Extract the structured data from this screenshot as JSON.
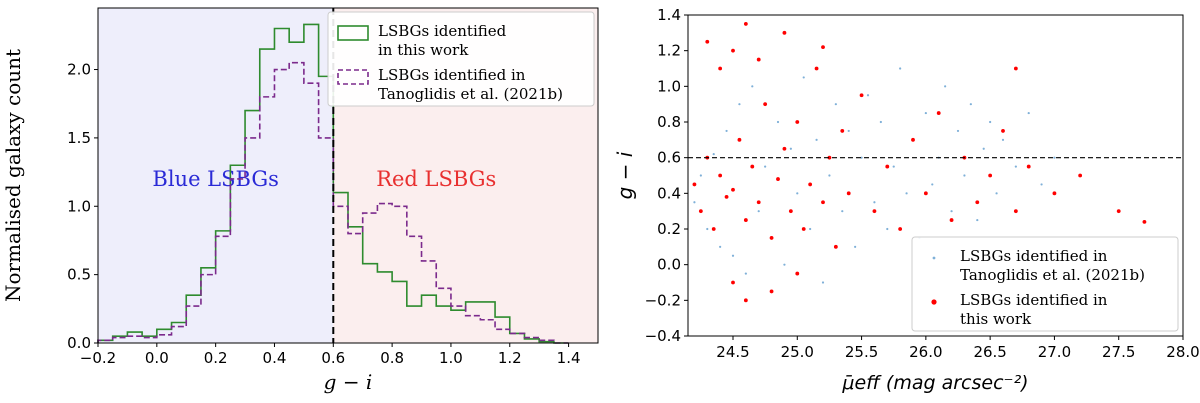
{
  "chart_data": [
    {
      "type": "histogram-step",
      "xlabel": "g − i",
      "ylabel": "Normalised galaxy count",
      "xlim": [
        -0.2,
        1.5
      ],
      "ylim": [
        0,
        2.45
      ],
      "xticks": [
        "−0.2",
        "0.0",
        "0.2",
        "0.4",
        "0.6",
        "0.8",
        "1.0",
        "1.2",
        "1.4"
      ],
      "xtick_values": [
        -0.2,
        0.0,
        0.2,
        0.4,
        0.6,
        0.8,
        1.0,
        1.2,
        1.4
      ],
      "yticks": [
        "0.0",
        "0.5",
        "1.0",
        "1.5",
        "2.0"
      ],
      "ytick_values": [
        0.0,
        0.5,
        1.0,
        1.5,
        2.0
      ],
      "divider_x": 0.6,
      "regions": [
        {
          "label": "Blue LSBGs",
          "from": -0.2,
          "to": 0.6,
          "fill": "#eeeefb",
          "text_color": "#2a2ad6"
        },
        {
          "label": "Red LSBGs",
          "from": 0.6,
          "to": 1.5,
          "fill": "#fbeeee",
          "text_color": "#e83030"
        }
      ],
      "legend_position": "top-right",
      "series": [
        {
          "name": "LSBGs identified\nin this work",
          "color": "#2e8b2e",
          "style": "solid",
          "edges": [
            -0.2,
            -0.15,
            -0.1,
            -0.05,
            0.0,
            0.05,
            0.1,
            0.15,
            0.2,
            0.25,
            0.3,
            0.35,
            0.4,
            0.45,
            0.5,
            0.55,
            0.6,
            0.65,
            0.7,
            0.75,
            0.8,
            0.85,
            0.9,
            0.95,
            1.0,
            1.05,
            1.1,
            1.15,
            1.2,
            1.25,
            1.3,
            1.35,
            1.4
          ],
          "values": [
            0.02,
            0.05,
            0.08,
            0.05,
            0.1,
            0.15,
            0.35,
            0.55,
            0.82,
            1.3,
            1.7,
            2.15,
            2.3,
            2.2,
            2.33,
            1.95,
            1.1,
            0.85,
            0.58,
            0.52,
            0.45,
            0.27,
            0.35,
            0.27,
            0.24,
            0.3,
            0.3,
            0.19,
            0.07,
            0.03,
            0.01,
            0.0
          ]
        },
        {
          "name": "LSBGs identified in\nTanoglidis et al. (2021b)",
          "color": "#7b2a8c",
          "style": "dashed",
          "edges": [
            -0.2,
            -0.15,
            -0.1,
            -0.05,
            0.0,
            0.05,
            0.1,
            0.15,
            0.2,
            0.25,
            0.3,
            0.35,
            0.4,
            0.45,
            0.5,
            0.55,
            0.6,
            0.65,
            0.7,
            0.75,
            0.8,
            0.85,
            0.9,
            0.95,
            1.0,
            1.05,
            1.1,
            1.15,
            1.2,
            1.25,
            1.3,
            1.35,
            1.4
          ],
          "values": [
            0.02,
            0.04,
            0.05,
            0.04,
            0.06,
            0.12,
            0.27,
            0.5,
            0.78,
            1.2,
            1.5,
            1.8,
            2.0,
            2.05,
            1.9,
            1.5,
            1.0,
            0.8,
            0.95,
            1.02,
            1.0,
            0.78,
            0.6,
            0.4,
            0.27,
            0.2,
            0.17,
            0.1,
            0.07,
            0.04,
            0.02,
            0.0
          ]
        }
      ]
    },
    {
      "type": "scatter",
      "xlabel": "μ̄eff (mag arcsec⁻²)",
      "ylabel": "g − i",
      "xlim": [
        24.15,
        28.0
      ],
      "ylim": [
        -0.4,
        1.4
      ],
      "xticks": [
        "24.5",
        "25.0",
        "25.5",
        "26.0",
        "26.5",
        "27.0",
        "27.5",
        "28.0"
      ],
      "xtick_values": [
        24.5,
        25.0,
        25.5,
        26.0,
        26.5,
        27.0,
        27.5,
        28.0
      ],
      "yticks": [
        "−0.4",
        "−0.2",
        "0.0",
        "0.2",
        "0.4",
        "0.6",
        "0.8",
        "1.0",
        "1.2",
        "1.4"
      ],
      "ytick_values": [
        -0.4,
        -0.2,
        0.0,
        0.2,
        0.4,
        0.6,
        0.8,
        1.0,
        1.2,
        1.4
      ],
      "reference_line_y": 0.6,
      "legend_position": "bottom-right",
      "series": [
        {
          "name": "LSBGs identified in\nTanoglidis et al. (2021b)",
          "color": "#7fb0d8",
          "marker": "small-dot",
          "points": [
            [
              24.2,
              0.35
            ],
            [
              24.25,
              0.5
            ],
            [
              24.3,
              0.2
            ],
            [
              24.35,
              0.62
            ],
            [
              24.4,
              0.1
            ],
            [
              24.45,
              0.75
            ],
            [
              24.5,
              0.05
            ],
            [
              24.55,
              0.9
            ],
            [
              24.6,
              -0.05
            ],
            [
              24.65,
              1.0
            ],
            [
              24.7,
              0.3
            ],
            [
              24.75,
              0.55
            ],
            [
              24.8,
              0.15
            ],
            [
              24.85,
              0.8
            ],
            [
              24.9,
              0.0
            ],
            [
              24.95,
              0.65
            ],
            [
              25.0,
              0.4
            ],
            [
              25.05,
              1.05
            ],
            [
              25.1,
              0.2
            ],
            [
              25.15,
              0.7
            ],
            [
              25.2,
              -0.1
            ],
            [
              25.25,
              0.5
            ],
            [
              25.3,
              0.9
            ],
            [
              25.35,
              0.3
            ],
            [
              25.4,
              0.75
            ],
            [
              25.45,
              0.1
            ],
            [
              25.5,
              0.6
            ],
            [
              25.55,
              0.95
            ],
            [
              25.6,
              0.35
            ],
            [
              25.65,
              0.8
            ],
            [
              25.7,
              0.2
            ],
            [
              25.75,
              0.55
            ],
            [
              25.8,
              1.1
            ],
            [
              25.85,
              0.4
            ],
            [
              25.9,
              0.7
            ],
            [
              25.95,
              0.15
            ],
            [
              26.0,
              0.85
            ],
            [
              26.05,
              0.45
            ],
            [
              26.1,
              0.6
            ],
            [
              26.15,
              1.0
            ],
            [
              26.2,
              0.3
            ],
            [
              26.25,
              0.75
            ],
            [
              26.3,
              0.5
            ],
            [
              26.35,
              0.9
            ],
            [
              26.4,
              0.25
            ],
            [
              26.45,
              0.65
            ],
            [
              26.5,
              0.8
            ],
            [
              26.55,
              0.4
            ],
            [
              26.6,
              0.7
            ],
            [
              26.7,
              0.55
            ],
            [
              26.8,
              0.85
            ],
            [
              26.9,
              0.45
            ],
            [
              27.0,
              0.6
            ]
          ]
        },
        {
          "name": "LSBGs identified in\nthis work",
          "color": "#ff0000",
          "marker": "dot",
          "points": [
            [
              24.2,
              0.45
            ],
            [
              24.25,
              0.3
            ],
            [
              24.3,
              0.6
            ],
            [
              24.35,
              0.2
            ],
            [
              24.4,
              0.5
            ],
            [
              24.45,
              0.38
            ],
            [
              24.5,
              0.42
            ],
            [
              24.55,
              0.7
            ],
            [
              24.6,
              0.25
            ],
            [
              24.65,
              0.55
            ],
            [
              24.7,
              0.35
            ],
            [
              24.75,
              0.9
            ],
            [
              24.8,
              0.15
            ],
            [
              24.85,
              0.48
            ],
            [
              24.9,
              0.65
            ],
            [
              24.95,
              0.3
            ],
            [
              25.0,
              0.8
            ],
            [
              25.05,
              0.2
            ],
            [
              25.1,
              0.45
            ],
            [
              25.15,
              1.1
            ],
            [
              25.2,
              0.35
            ],
            [
              25.25,
              0.6
            ],
            [
              25.3,
              0.1
            ],
            [
              25.35,
              0.75
            ],
            [
              25.4,
              0.4
            ],
            [
              25.5,
              0.95
            ],
            [
              25.6,
              0.3
            ],
            [
              25.7,
              0.55
            ],
            [
              25.8,
              0.2
            ],
            [
              25.9,
              0.7
            ],
            [
              26.0,
              0.4
            ],
            [
              26.1,
              0.85
            ],
            [
              26.2,
              0.25
            ],
            [
              26.3,
              0.6
            ],
            [
              26.4,
              0.35
            ],
            [
              26.5,
              0.5
            ],
            [
              26.6,
              0.75
            ],
            [
              26.7,
              0.3
            ],
            [
              26.8,
              0.55
            ],
            [
              27.0,
              0.4
            ],
            [
              27.2,
              0.5
            ],
            [
              27.5,
              0.3
            ],
            [
              27.7,
              0.24
            ],
            [
              24.3,
              1.25
            ],
            [
              24.4,
              1.1
            ],
            [
              24.5,
              1.2
            ],
            [
              24.6,
              1.35
            ],
            [
              24.7,
              1.15
            ],
            [
              24.9,
              1.3
            ],
            [
              25.2,
              1.22
            ],
            [
              26.7,
              1.1
            ],
            [
              24.5,
              -0.1
            ],
            [
              24.6,
              -0.2
            ],
            [
              24.8,
              -0.15
            ],
            [
              25.0,
              -0.05
            ]
          ]
        }
      ]
    }
  ]
}
